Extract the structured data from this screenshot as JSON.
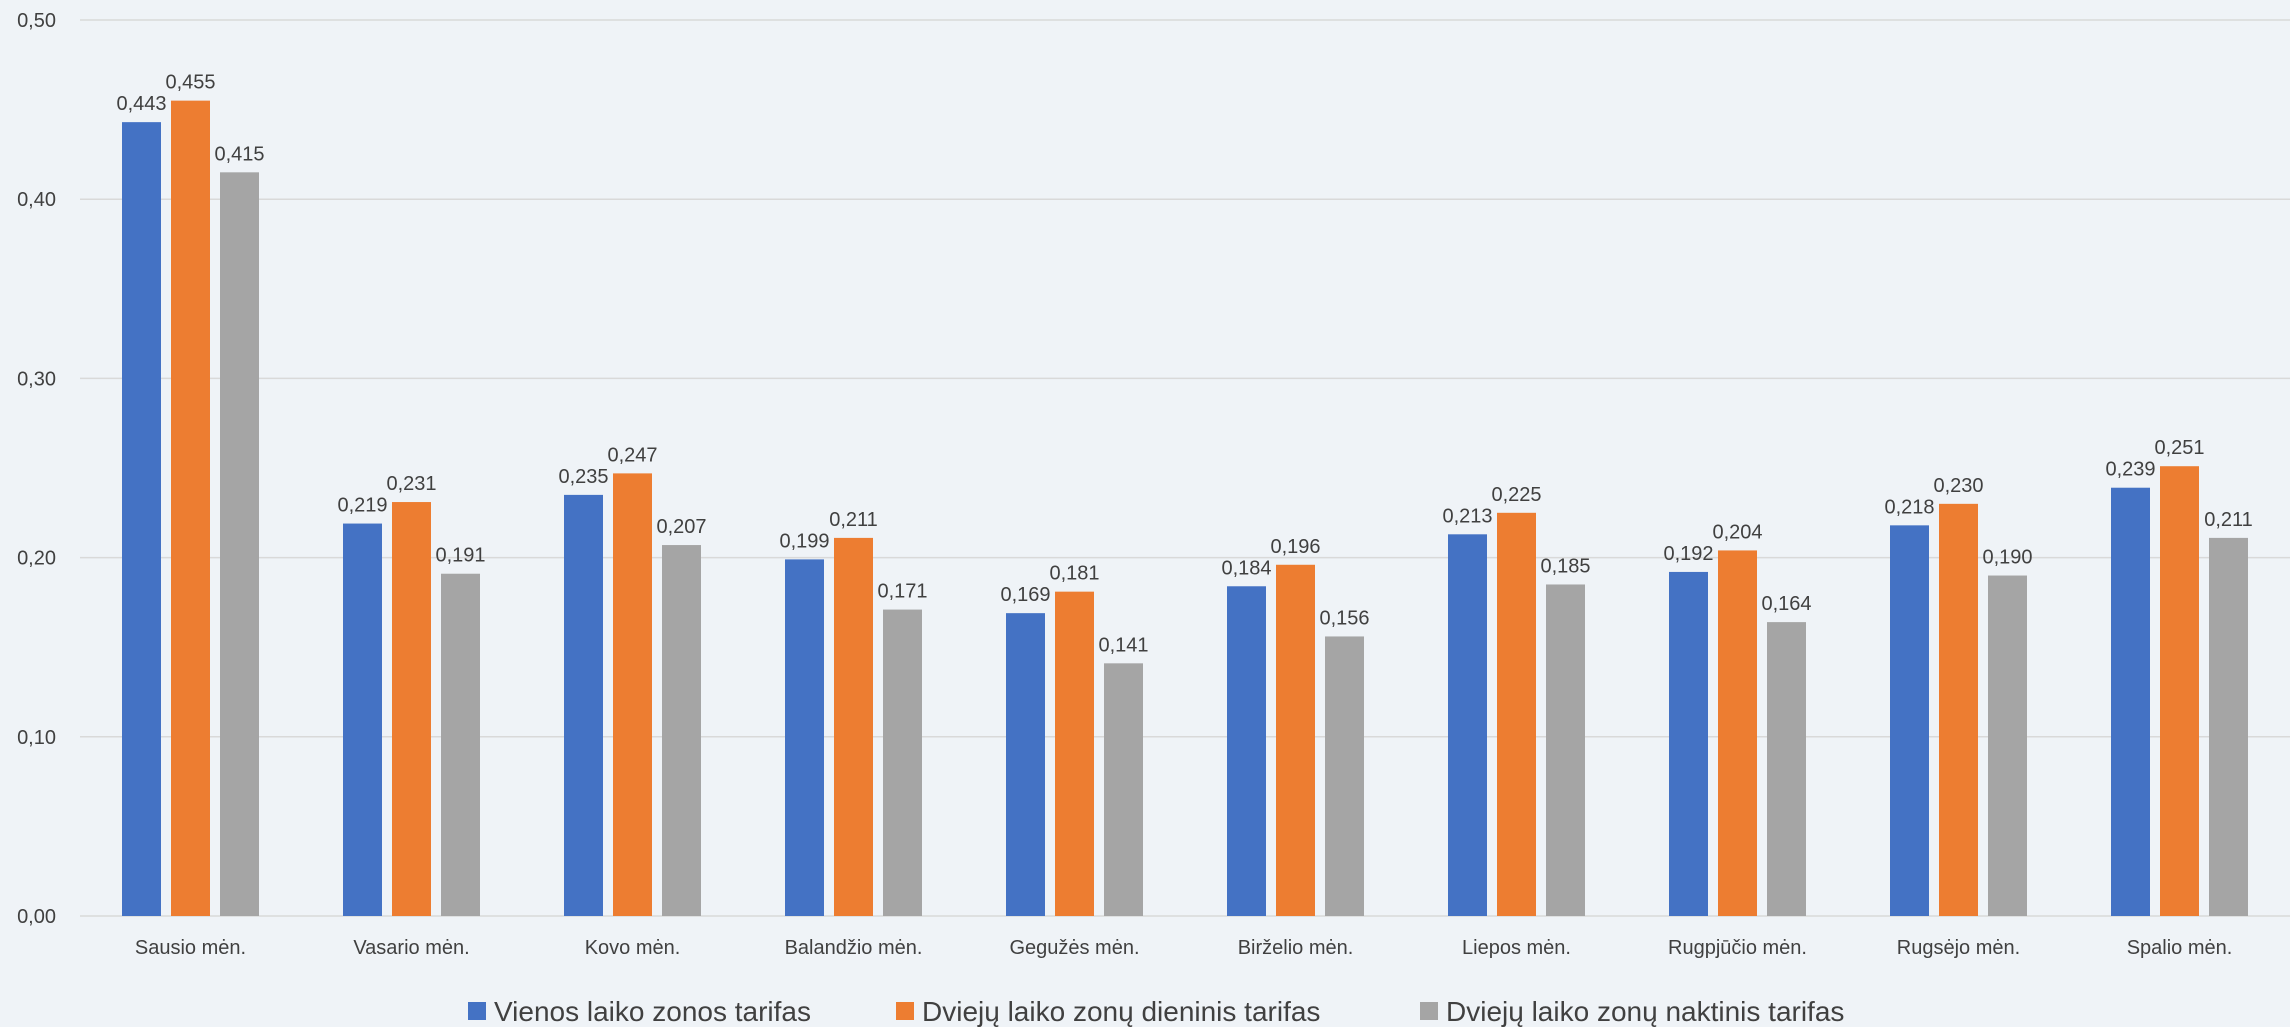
{
  "chart_data": {
    "type": "bar",
    "categories": [
      "Sausio mėn.",
      "Vasario mėn.",
      "Kovo mėn.",
      "Balandžio mėn.",
      "Gegužės  mėn.",
      "Birželio mėn.",
      "Liepos mėn.",
      "Rugpjūčio mėn.",
      "Rugsėjo mėn.",
      "Spalio mėn."
    ],
    "series": [
      {
        "name": "Vienos laiko zonos tarifas",
        "color": "#4472c4",
        "values": [
          0.443,
          0.219,
          0.235,
          0.199,
          0.169,
          0.184,
          0.213,
          0.192,
          0.218,
          0.239
        ]
      },
      {
        "name": "Dviejų laiko zonų dieninis tarifas",
        "color": "#ed7d31",
        "values": [
          0.455,
          0.231,
          0.247,
          0.211,
          0.181,
          0.196,
          0.225,
          0.204,
          0.23,
          0.251
        ]
      },
      {
        "name": "Dviejų laiko zonų naktinis tarifas",
        "color": "#a5a5a5",
        "values": [
          0.415,
          0.191,
          0.207,
          0.171,
          0.141,
          0.156,
          0.185,
          0.164,
          0.19,
          0.211
        ]
      }
    ],
    "data_labels": [
      [
        "0,443",
        "0,219",
        "0,235",
        "0,199",
        "0,169",
        "0,184",
        "0,213",
        "0,192",
        "0,218",
        "0,239"
      ],
      [
        "0,455",
        "0,231",
        "0,247",
        "0,211",
        "0,181",
        "0,196",
        "0,225",
        "0,204",
        "0,230",
        "0,251"
      ],
      [
        "0,415",
        "0,191",
        "0,207",
        "0,171",
        "0,141",
        "0,156",
        "0,185",
        "0,164",
        "0,190",
        "0,211"
      ]
    ],
    "y_ticks": [
      0,
      0.1,
      0.2,
      0.3,
      0.4,
      0.5
    ],
    "y_tick_labels": [
      "0,00",
      "0,10",
      "0,20",
      "0,30",
      "0,40",
      "0,50"
    ],
    "ylim": [
      0,
      0.5
    ],
    "grid": true,
    "gridline_color": "#d9d9d9",
    "legend_position": "bottom",
    "title": "",
    "xlabel": "",
    "ylabel": ""
  }
}
